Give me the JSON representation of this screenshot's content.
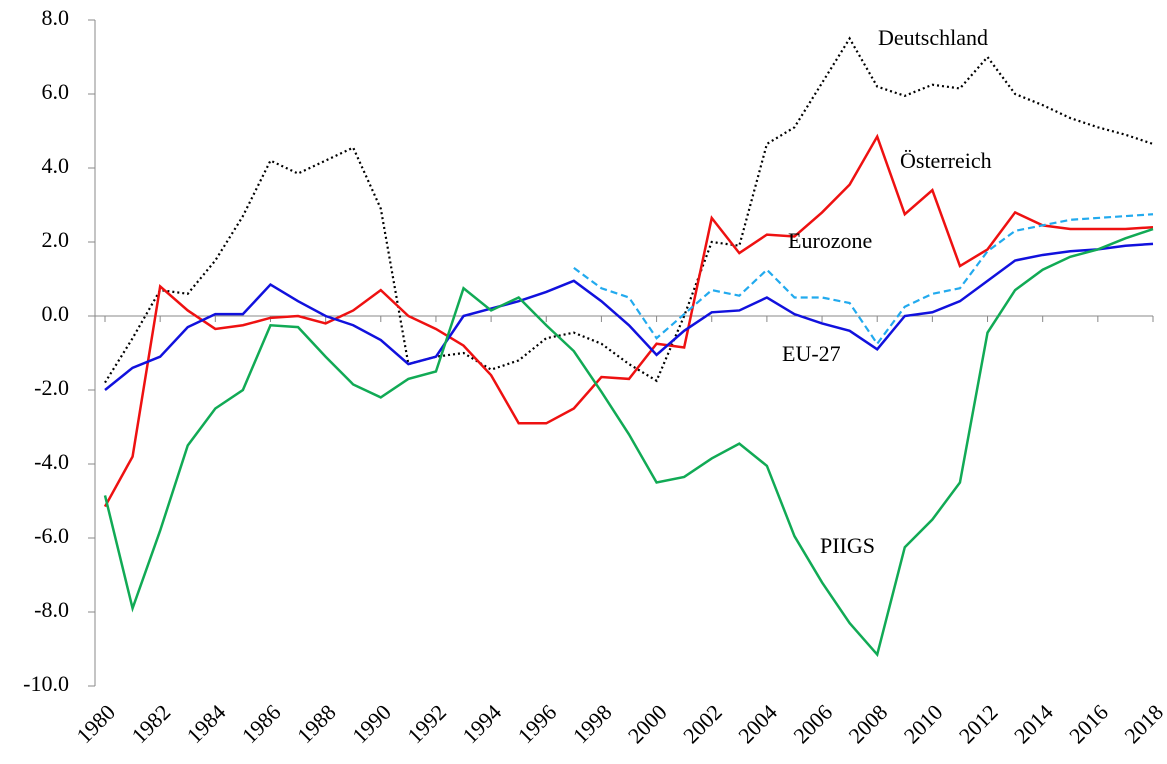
{
  "chart_data": {
    "type": "line",
    "x": [
      1980,
      1981,
      1982,
      1983,
      1984,
      1985,
      1986,
      1987,
      1988,
      1989,
      1990,
      1991,
      1992,
      1993,
      1994,
      1995,
      1996,
      1997,
      1998,
      1999,
      2000,
      2001,
      2002,
      2003,
      2004,
      2005,
      2006,
      2007,
      2008,
      2009,
      2010,
      2011,
      2012,
      2013,
      2014,
      2015,
      2016,
      2017,
      2018
    ],
    "xlim": [
      1980,
      2018
    ],
    "xticks": [
      1980,
      1982,
      1984,
      1986,
      1988,
      1990,
      1992,
      1994,
      1996,
      1998,
      2000,
      2002,
      2004,
      2006,
      2008,
      2010,
      2012,
      2014,
      2016,
      2018
    ],
    "ylim": [
      -10,
      8
    ],
    "yticks": [
      {
        "value": -10,
        "label": "-10.0"
      },
      {
        "value": -8,
        "label": "-8.0"
      },
      {
        "value": -6,
        "label": "-6.0"
      },
      {
        "value": -4,
        "label": "-4.0"
      },
      {
        "value": -2,
        "label": "-2.0"
      },
      {
        "value": 0,
        "label": "0.0"
      },
      {
        "value": 2,
        "label": "2.0"
      },
      {
        "value": 4,
        "label": "4.0"
      },
      {
        "value": 6,
        "label": "6.0"
      },
      {
        "value": 8,
        "label": "8.0"
      }
    ],
    "series": [
      {
        "name": "Deutschland",
        "color": "#000000",
        "style": "dotted",
        "values": [
          -1.8,
          -0.6,
          0.7,
          0.6,
          1.5,
          2.7,
          4.2,
          3.85,
          4.2,
          4.55,
          2.9,
          -1.3,
          -1.1,
          -1.0,
          -1.45,
          -1.2,
          -0.6,
          -0.45,
          -0.75,
          -1.3,
          -1.75,
          0.0,
          2.0,
          1.9,
          4.65,
          5.1,
          6.3,
          7.5,
          6.2,
          5.95,
          6.25,
          6.15,
          7.0,
          6.0,
          5.7,
          5.35,
          5.1,
          4.9,
          4.65
        ]
      },
      {
        "name": "Österreich",
        "color": "#ee1111",
        "style": "solid",
        "values": [
          -5.15,
          -3.8,
          0.8,
          0.15,
          -0.35,
          -0.25,
          -0.05,
          0.0,
          -0.2,
          0.15,
          0.7,
          0.0,
          -0.35,
          -0.8,
          -1.6,
          -2.9,
          -2.9,
          -2.5,
          -1.65,
          -1.7,
          -0.75,
          -0.85,
          2.65,
          1.7,
          2.2,
          2.15,
          2.8,
          3.55,
          4.85,
          2.75,
          3.4,
          1.35,
          1.8,
          2.8,
          2.45,
          2.35,
          2.35,
          2.35,
          2.4
        ]
      },
      {
        "name": "Eurozone",
        "color": "#22aaee",
        "style": "dashed",
        "values": [
          null,
          null,
          null,
          null,
          null,
          null,
          null,
          null,
          null,
          null,
          null,
          null,
          null,
          null,
          null,
          null,
          null,
          1.3,
          0.75,
          0.5,
          -0.6,
          0.05,
          0.7,
          0.55,
          1.25,
          0.5,
          0.5,
          0.35,
          -0.75,
          0.25,
          0.6,
          0.75,
          1.75,
          2.3,
          2.45,
          2.6,
          2.65,
          2.7,
          2.75
        ]
      },
      {
        "name": "EU-27",
        "color": "#1111dd",
        "style": "solid",
        "values": [
          -2.0,
          -1.4,
          -1.1,
          -0.3,
          0.05,
          0.05,
          0.85,
          0.4,
          0.0,
          -0.25,
          -0.65,
          -1.3,
          -1.1,
          0.0,
          0.2,
          0.4,
          0.65,
          0.95,
          0.4,
          -0.25,
          -1.05,
          -0.4,
          0.1,
          0.15,
          0.5,
          0.05,
          -0.2,
          -0.4,
          -0.9,
          0.0,
          0.1,
          0.4,
          0.95,
          1.5,
          1.65,
          1.75,
          1.8,
          1.9,
          1.95
        ]
      },
      {
        "name": "PIIGS",
        "color": "#11aa55",
        "style": "solid",
        "values": [
          -4.85,
          -7.9,
          -5.8,
          -3.5,
          -2.5,
          -2.0,
          -0.25,
          -0.3,
          -1.1,
          -1.85,
          -2.2,
          -1.7,
          -1.5,
          0.75,
          0.15,
          0.5,
          -0.25,
          -0.95,
          -2.05,
          -3.2,
          -4.5,
          -4.35,
          -3.85,
          -3.45,
          -4.05,
          -5.95,
          -7.2,
          -8.3,
          -9.15,
          -6.25,
          -5.5,
          -4.5,
          -0.45,
          0.7,
          1.25,
          1.6,
          1.8,
          2.1,
          2.35
        ]
      }
    ]
  }
}
